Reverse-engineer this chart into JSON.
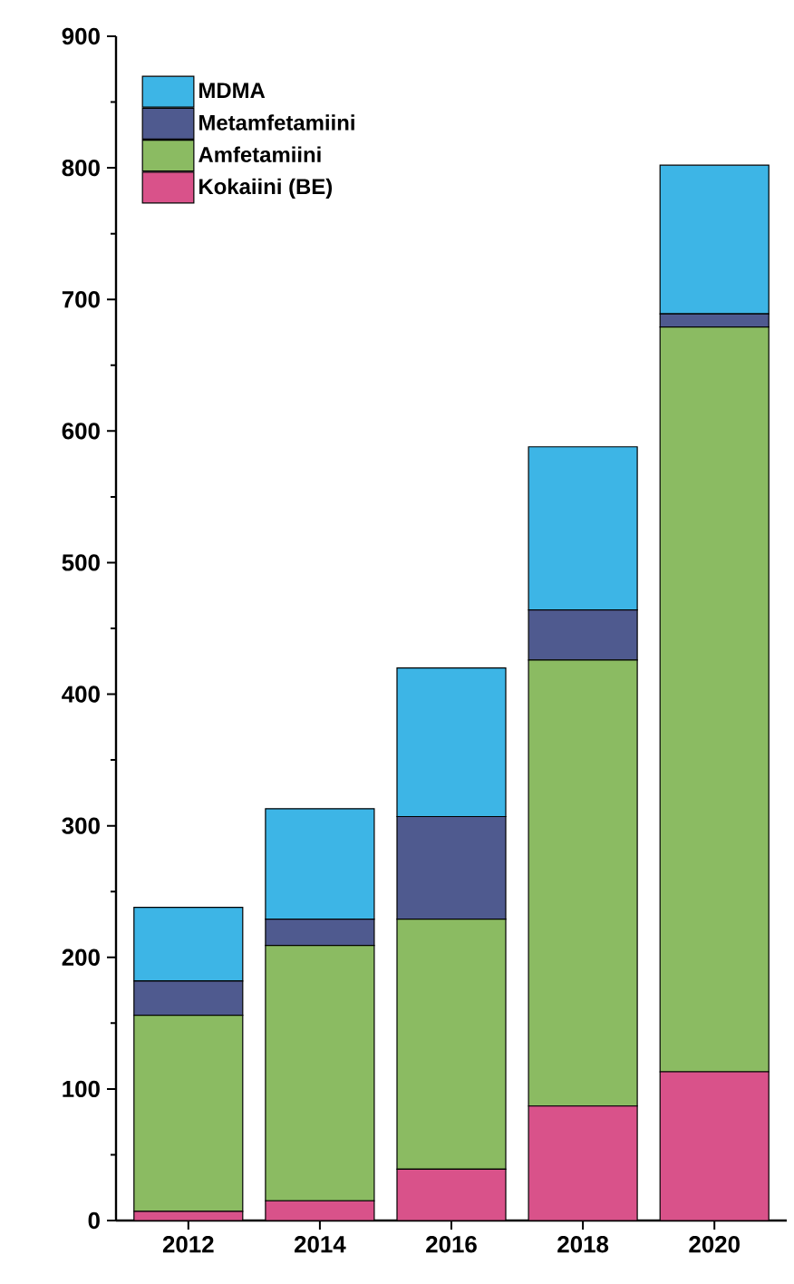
{
  "chart_data": {
    "type": "bar",
    "stacked": true,
    "categories": [
      "2012",
      "2014",
      "2016",
      "2018",
      "2020"
    ],
    "series": [
      {
        "name": "Kokaiini (BE)",
        "color": "#d9528a",
        "values": [
          7,
          15,
          39,
          87,
          113
        ]
      },
      {
        "name": "Amfetamiini",
        "color": "#8bbb62",
        "values": [
          149,
          194,
          190,
          339,
          566
        ]
      },
      {
        "name": "Metamfetamiini",
        "color": "#4f5a8f",
        "values": [
          26,
          20,
          78,
          38,
          10
        ]
      },
      {
        "name": "MDMA",
        "color": "#3db5e6",
        "values": [
          56,
          84,
          113,
          124,
          113
        ]
      }
    ],
    "ylim": [
      0,
      900
    ],
    "yticks": [
      0,
      100,
      200,
      300,
      400,
      500,
      600,
      700,
      800,
      900
    ],
    "legend": "top left",
    "grid": false
  }
}
